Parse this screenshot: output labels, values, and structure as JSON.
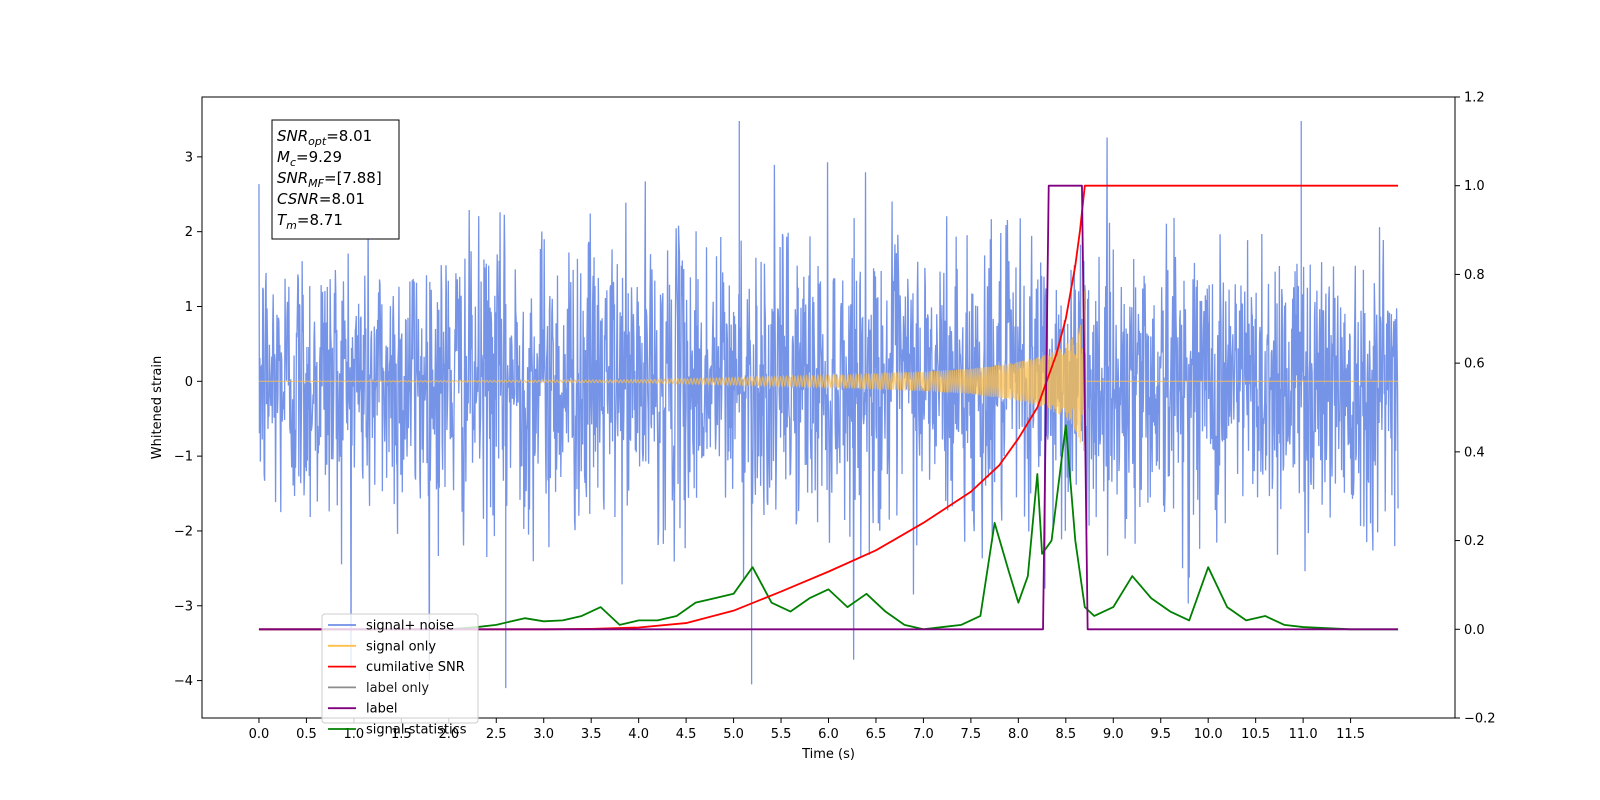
{
  "chart_data": {
    "type": "line",
    "xlabel": "Time (s)",
    "ylabel": "Whitened strain",
    "xlim": [
      -0.6,
      12.6
    ],
    "ylim_left": [
      -4.5,
      3.8
    ],
    "ylim_right": [
      -0.2,
      1.2
    ],
    "x_ticks": [
      "0.0",
      "0.5",
      "1.0",
      "1.5",
      "2.0",
      "2.5",
      "3.0",
      "3.5",
      "4.0",
      "4.5",
      "5.0",
      "5.5",
      "6.0",
      "6.5",
      "7.0",
      "7.5",
      "8.0",
      "8.5",
      "9.0",
      "9.5",
      "10.0",
      "10.5",
      "11.0",
      "11.5"
    ],
    "y_ticks_left": [
      "−4",
      "−3",
      "−2",
      "−1",
      "0",
      "1",
      "2",
      "3"
    ],
    "y_ticks_right": [
      "−0.2",
      "0.0",
      "0.2",
      "0.4",
      "0.6",
      "0.8",
      "1.0",
      "1.2"
    ],
    "grid": false,
    "legend_position": "lower-left",
    "annotation": {
      "lines": [
        {
          "main": "SNR",
          "sub": "opt",
          "value": "=8.01"
        },
        {
          "main": "M",
          "sub": "c",
          "value": "=9.29"
        },
        {
          "main": "SNR",
          "sub": "MF",
          "value": "=[7.88]"
        },
        {
          "main": "CSNR",
          "sub": "",
          "value": "=8.01"
        },
        {
          "main": "T",
          "sub": "m",
          "value": "=8.71"
        }
      ]
    },
    "series": [
      {
        "name": "signal+ noise",
        "axis": "left",
        "color": "#6f8ee6",
        "kind": "noise",
        "t_start": 0.0,
        "t_end": 12.0,
        "amplitude_sigma": 1.0,
        "typical_range": [
          -2.6,
          2.6
        ],
        "max": 3.5,
        "min": -4.1,
        "spikes": [
          {
            "x": 5.19,
            "y": -4.05
          },
          {
            "x": 2.6,
            "y": -4.1
          },
          {
            "x": 5.06,
            "y": 3.48
          },
          {
            "x": 10.98,
            "y": 3.48
          }
        ]
      },
      {
        "name": "signal only",
        "axis": "left",
        "color": "#ffbf4a",
        "kind": "chirp",
        "t_start": 0.0,
        "t_end": 8.71,
        "t_merge": 8.71,
        "max_amplitude": 1.3,
        "x": [
          0.0,
          4.0,
          5.0,
          6.0,
          7.0,
          7.5,
          8.0,
          8.3,
          8.5,
          8.6,
          8.65,
          8.69
        ],
        "envelope": [
          0.0,
          0.02,
          0.05,
          0.08,
          0.13,
          0.17,
          0.26,
          0.36,
          0.5,
          0.65,
          0.8,
          1.3
        ]
      },
      {
        "name": "cumilative SNR",
        "axis": "right",
        "color": "#ff0000",
        "x": [
          0.0,
          3.0,
          3.5,
          4.0,
          4.5,
          5.0,
          5.5,
          6.0,
          6.5,
          7.0,
          7.5,
          7.8,
          8.0,
          8.2,
          8.4,
          8.5,
          8.6,
          8.65,
          8.7,
          8.72,
          12.0
        ],
        "values": [
          0.0,
          0.0,
          0.001,
          0.004,
          0.014,
          0.042,
          0.085,
          0.13,
          0.178,
          0.24,
          0.31,
          0.37,
          0.43,
          0.5,
          0.62,
          0.7,
          0.82,
          0.9,
          1.0,
          1.0,
          1.0
        ]
      },
      {
        "name": "label",
        "axis": "right",
        "color": "#800080",
        "x": [
          0.0,
          8.26,
          8.32,
          8.67,
          8.73,
          12.0
        ],
        "values": [
          0.0,
          0.0,
          1.0,
          1.0,
          0.0,
          0.0
        ]
      },
      {
        "name": "label only",
        "axis": "right",
        "color": "#8d8d8d",
        "legend_only": true
      },
      {
        "name": "signal statistics",
        "axis": "right",
        "color": "#008000",
        "x": [
          0.0,
          1.0,
          2.0,
          2.3,
          2.5,
          2.8,
          3.0,
          3.2,
          3.4,
          3.6,
          3.8,
          4.0,
          4.2,
          4.4,
          4.6,
          4.8,
          5.0,
          5.2,
          5.4,
          5.6,
          5.8,
          6.0,
          6.2,
          6.4,
          6.6,
          6.8,
          7.0,
          7.2,
          7.4,
          7.6,
          7.75,
          7.9,
          8.0,
          8.1,
          8.2,
          8.25,
          8.35,
          8.5,
          8.6,
          8.7,
          8.8,
          9.0,
          9.2,
          9.4,
          9.6,
          9.8,
          10.0,
          10.2,
          10.4,
          10.6,
          10.8,
          11.0,
          11.5,
          12.0
        ],
        "values": [
          0.0,
          0.0,
          0.0,
          0.005,
          0.01,
          0.025,
          0.018,
          0.02,
          0.03,
          0.05,
          0.01,
          0.02,
          0.02,
          0.03,
          0.06,
          0.07,
          0.08,
          0.14,
          0.06,
          0.04,
          0.07,
          0.09,
          0.05,
          0.08,
          0.04,
          0.01,
          0.0,
          0.005,
          0.01,
          0.03,
          0.24,
          0.13,
          0.06,
          0.12,
          0.35,
          0.17,
          0.2,
          0.46,
          0.2,
          0.05,
          0.03,
          0.05,
          0.12,
          0.07,
          0.04,
          0.02,
          0.14,
          0.05,
          0.02,
          0.03,
          0.01,
          0.005,
          0.0,
          0.0
        ]
      }
    ]
  }
}
